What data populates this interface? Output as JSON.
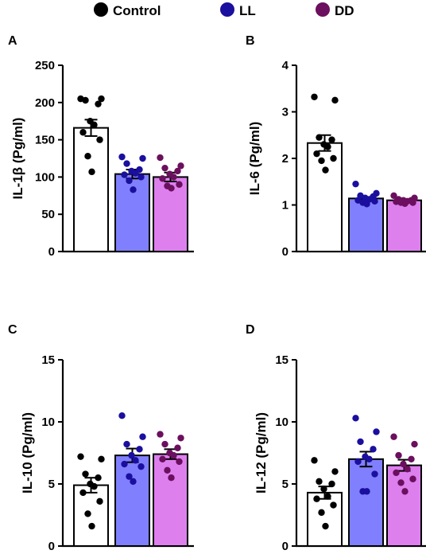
{
  "legend": {
    "items": [
      {
        "label": "Control",
        "color": "#000000"
      },
      {
        "label": "LL",
        "color": "#1a0f9e"
      },
      {
        "label": "DD",
        "color": "#6b0f5e"
      }
    ]
  },
  "colors": {
    "bar_fill": [
      "#ffffff",
      "#8080ff",
      "#dd80ee"
    ],
    "dot": [
      "#000000",
      "#1a0f9e",
      "#6b0f5e"
    ],
    "bar_stroke": "#000000"
  },
  "chart_data": [
    {
      "type": "bar",
      "panel": "A",
      "categories": [
        "Control",
        "LL",
        "DD"
      ],
      "ylabel": "IL-1β (Pg/ml)",
      "ylim": [
        0,
        250
      ],
      "yticks": [
        0,
        50,
        100,
        150,
        200,
        250
      ],
      "values": [
        166,
        104,
        100
      ],
      "sem": [
        11,
        6,
        6
      ],
      "points": [
        [
          205,
          205,
          203,
          198,
          175,
          170,
          160,
          150,
          128,
          107
        ],
        [
          127,
          125,
          118,
          110,
          108,
          105,
          103,
          100,
          95,
          83
        ],
        [
          126,
          115,
          112,
          108,
          104,
          100,
          98,
          90,
          88,
          85
        ]
      ]
    },
    {
      "type": "bar",
      "panel": "B",
      "categories": [
        "Control",
        "LL",
        "DD"
      ],
      "ylabel": "IL-6 (Pg/ml)",
      "ylim": [
        0,
        4
      ],
      "yticks": [
        0,
        1,
        2,
        3,
        4
      ],
      "values": [
        2.33,
        1.14,
        1.1
      ],
      "sem": [
        0.17,
        0.03,
        0.02
      ],
      "points": [
        [
          3.32,
          3.25,
          2.45,
          2.4,
          2.3,
          2.25,
          2.1,
          2.0,
          1.95,
          1.75
        ],
        [
          1.45,
          1.25,
          1.2,
          1.18,
          1.15,
          1.12,
          1.1,
          1.08,
          1.05,
          1.02
        ],
        [
          1.2,
          1.15,
          1.12,
          1.1,
          1.1,
          1.08,
          1.07,
          1.05,
          1.05,
          1.03
        ]
      ]
    },
    {
      "type": "bar",
      "panel": "C",
      "categories": [
        "Control",
        "LL",
        "DD"
      ],
      "ylabel": "IL-10 (Pg/ml)",
      "ylim": [
        0,
        15
      ],
      "yticks": [
        0,
        5,
        10,
        15
      ],
      "values": [
        4.9,
        7.3,
        7.4
      ],
      "sem": [
        0.6,
        0.55,
        0.4
      ],
      "points": [
        [
          7.2,
          7.0,
          5.8,
          5.5,
          5.0,
          4.8,
          4.3,
          3.6,
          2.6,
          1.6
        ],
        [
          10.5,
          8.8,
          8.2,
          7.8,
          7.3,
          6.9,
          6.6,
          6.4,
          5.6,
          5.2
        ],
        [
          9.0,
          8.7,
          8.2,
          7.9,
          7.5,
          7.3,
          7.0,
          6.8,
          6.1,
          5.5
        ]
      ]
    },
    {
      "type": "bar",
      "panel": "D",
      "categories": [
        "Control",
        "LL",
        "DD"
      ],
      "ylabel": "IL-12 (Pg/ml)",
      "ylim": [
        0,
        15
      ],
      "yticks": [
        0,
        5,
        10,
        15
      ],
      "values": [
        4.3,
        7.0,
        6.5
      ],
      "sem": [
        0.5,
        0.6,
        0.45
      ],
      "points": [
        [
          6.9,
          6.0,
          5.2,
          5.0,
          4.6,
          4.0,
          3.8,
          3.3,
          2.7,
          1.6
        ],
        [
          10.3,
          9.2,
          8.4,
          7.8,
          7.2,
          7.0,
          6.8,
          5.8,
          4.4,
          4.4
        ],
        [
          8.8,
          8.2,
          7.3,
          7.0,
          6.6,
          6.2,
          5.9,
          5.4,
          5.1,
          4.4
        ]
      ]
    }
  ]
}
